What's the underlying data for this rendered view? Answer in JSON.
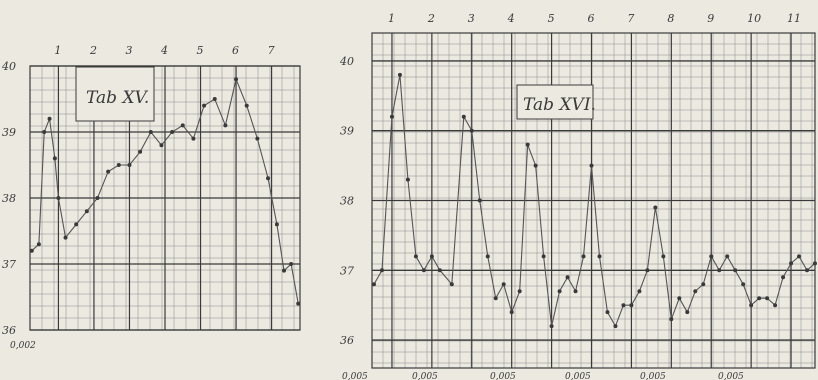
{
  "colors": {
    "paper": "#ece9e1",
    "ink": "#3a3a3a",
    "grid": "#8a8a8a",
    "line": "#555555"
  },
  "chart_data": [
    {
      "type": "line",
      "title": "Tab XV.",
      "xlabel": "",
      "ylabel": "",
      "x_ticks": [
        "1",
        "2",
        "3",
        "4",
        "5",
        "6",
        "7"
      ],
      "y_ticks": [
        "36",
        "37",
        "38",
        "39",
        "40"
      ],
      "ylim": [
        36,
        40
      ],
      "xlim": [
        0.2,
        7.8
      ],
      "grid": true,
      "footnote": "0,002",
      "series": [
        {
          "x": [
            0.25,
            0.45,
            0.6,
            0.75,
            0.9,
            1.0,
            1.2,
            1.5,
            1.8,
            2.1,
            2.4,
            2.7,
            3.0,
            3.3,
            3.6,
            3.9,
            4.2,
            4.5,
            4.8,
            5.1,
            5.4,
            5.7,
            6.0,
            6.3,
            6.6,
            6.9,
            7.15,
            7.35,
            7.55,
            7.75
          ],
          "y": [
            37.2,
            37.3,
            39.0,
            39.2,
            38.6,
            38.0,
            37.4,
            37.6,
            37.8,
            38.0,
            38.4,
            38.5,
            38.5,
            38.7,
            39.0,
            38.8,
            39.0,
            39.1,
            38.9,
            39.4,
            39.5,
            39.1,
            39.8,
            39.4,
            38.9,
            38.3,
            37.6,
            36.9,
            37.0,
            36.4
          ]
        }
      ]
    },
    {
      "type": "line",
      "title": "Tab XVI.",
      "xlabel": "",
      "ylabel": "",
      "x_ticks": [
        "1",
        "2",
        "3",
        "4",
        "5",
        "6",
        "7",
        "8",
        "9",
        "10",
        "11"
      ],
      "y_ticks": [
        "36",
        "37",
        "38",
        "39",
        "40"
      ],
      "ylim": [
        35.6,
        40.4
      ],
      "xlim": [
        0.5,
        11.6
      ],
      "grid": true,
      "footnotes": [
        "0,005",
        "0,005",
        "0,005",
        "0,005",
        "0,005",
        "0,005"
      ],
      "series": [
        {
          "x": [
            0.55,
            0.75,
            1.0,
            1.2,
            1.4,
            1.6,
            1.8,
            2.0,
            2.2,
            2.5,
            2.8,
            3.0,
            3.2,
            3.4,
            3.6,
            3.8,
            4.0,
            4.2,
            4.4,
            4.6,
            4.8,
            5.0,
            5.2,
            5.4,
            5.6,
            5.8,
            6.0,
            6.2,
            6.4,
            6.6,
            6.8,
            7.0,
            7.2,
            7.4,
            7.6,
            7.8,
            8.0,
            8.2,
            8.4,
            8.6,
            8.8,
            9.0,
            9.2,
            9.4,
            9.6,
            9.8,
            10.0,
            10.2,
            10.4,
            10.6,
            10.8,
            11.0,
            11.2,
            11.4,
            11.6
          ],
          "y": [
            36.8,
            37.0,
            39.2,
            39.8,
            38.3,
            37.2,
            37.0,
            37.2,
            37.0,
            36.8,
            39.2,
            39.0,
            38.0,
            37.2,
            36.6,
            36.8,
            36.4,
            36.7,
            38.8,
            38.5,
            37.2,
            36.2,
            36.7,
            36.9,
            36.7,
            37.2,
            38.5,
            37.2,
            36.4,
            36.2,
            36.5,
            36.5,
            36.7,
            37.0,
            37.9,
            37.2,
            36.3,
            36.6,
            36.4,
            36.7,
            36.8,
            37.2,
            37.0,
            37.2,
            37.0,
            36.8,
            36.5,
            36.6,
            36.6,
            36.5,
            36.9,
            37.1,
            37.2,
            37.0,
            37.1
          ]
        }
      ]
    }
  ]
}
